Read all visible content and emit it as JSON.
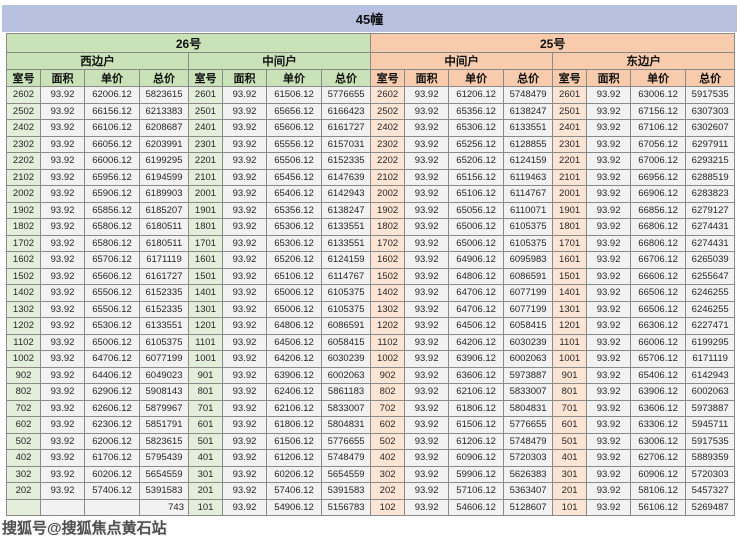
{
  "title": "45幢",
  "table": {
    "groups": [
      {
        "building": "26号",
        "units": [
          "西边户",
          "中间户"
        ]
      },
      {
        "building": "25号",
        "units": [
          "中间户",
          "东边户"
        ]
      }
    ],
    "col_headers": [
      "室号",
      "面积",
      "单价",
      "总价"
    ],
    "rows": [
      [
        "2602",
        "93.92",
        "62006.12",
        "5823615",
        "2601",
        "93.92",
        "61506.12",
        "5776655",
        "2602",
        "93.92",
        "61206.12",
        "5748479",
        "2601",
        "93.92",
        "63006.12",
        "5917535"
      ],
      [
        "2502",
        "93.92",
        "66156.12",
        "6213383",
        "2501",
        "93.92",
        "65656.12",
        "6166423",
        "2502",
        "93.92",
        "65356.12",
        "6138247",
        "2501",
        "93.92",
        "67156.12",
        "6307303"
      ],
      [
        "2402",
        "93.92",
        "66106.12",
        "6208687",
        "2401",
        "93.92",
        "65606.12",
        "6161727",
        "2402",
        "93.92",
        "65306.12",
        "6133551",
        "2401",
        "93.92",
        "67106.12",
        "6302607"
      ],
      [
        "2302",
        "93.92",
        "66056.12",
        "6203991",
        "2301",
        "93.92",
        "65556.12",
        "6157031",
        "2302",
        "93.92",
        "65256.12",
        "6128855",
        "2301",
        "93.92",
        "67056.12",
        "6297911"
      ],
      [
        "2202",
        "93.92",
        "66006.12",
        "6199295",
        "2201",
        "93.92",
        "65506.12",
        "6152335",
        "2202",
        "93.92",
        "65206.12",
        "6124159",
        "2201",
        "93.92",
        "67006.12",
        "6293215"
      ],
      [
        "2102",
        "93.92",
        "65956.12",
        "6194599",
        "2101",
        "93.92",
        "65456.12",
        "6147639",
        "2102",
        "93.92",
        "65156.12",
        "6119463",
        "2101",
        "93.92",
        "66956.12",
        "6288519"
      ],
      [
        "2002",
        "93.92",
        "65906.12",
        "6189903",
        "2001",
        "93.92",
        "65406.12",
        "6142943",
        "2002",
        "93.92",
        "65106.12",
        "6114767",
        "2001",
        "93.92",
        "66906.12",
        "6283823"
      ],
      [
        "1902",
        "93.92",
        "65856.12",
        "6185207",
        "1901",
        "93.92",
        "65356.12",
        "6138247",
        "1902",
        "93.92",
        "65056.12",
        "6110071",
        "1901",
        "93.92",
        "66856.12",
        "6279127"
      ],
      [
        "1802",
        "93.92",
        "65806.12",
        "6180511",
        "1801",
        "93.92",
        "65306.12",
        "6133551",
        "1802",
        "93.92",
        "65006.12",
        "6105375",
        "1801",
        "93.92",
        "66806.12",
        "6274431"
      ],
      [
        "1702",
        "93.92",
        "65806.12",
        "6180511",
        "1701",
        "93.92",
        "65306.12",
        "6133551",
        "1702",
        "93.92",
        "65006.12",
        "6105375",
        "1701",
        "93.92",
        "66806.12",
        "6274431"
      ],
      [
        "1602",
        "93.92",
        "65706.12",
        "6171119",
        "1601",
        "93.92",
        "65206.12",
        "6124159",
        "1602",
        "93.92",
        "64906.12",
        "6095983",
        "1601",
        "93.92",
        "66706.12",
        "6265039"
      ],
      [
        "1502",
        "93.92",
        "65606.12",
        "6161727",
        "1501",
        "93.92",
        "65106.12",
        "6114767",
        "1502",
        "93.92",
        "64806.12",
        "6086591",
        "1501",
        "93.92",
        "66606.12",
        "6255647"
      ],
      [
        "1402",
        "93.92",
        "65506.12",
        "6152335",
        "1401",
        "93.92",
        "65006.12",
        "6105375",
        "1402",
        "93.92",
        "64706.12",
        "6077199",
        "1401",
        "93.92",
        "66506.12",
        "6246255"
      ],
      [
        "1302",
        "93.92",
        "65506.12",
        "6152335",
        "1301",
        "93.92",
        "65006.12",
        "6105375",
        "1302",
        "93.92",
        "64706.12",
        "6077199",
        "1301",
        "93.92",
        "66506.12",
        "6246255"
      ],
      [
        "1202",
        "93.92",
        "65306.12",
        "6133551",
        "1201",
        "93.92",
        "64806.12",
        "6086591",
        "1202",
        "93.92",
        "64506.12",
        "6058415",
        "1201",
        "93.92",
        "66306.12",
        "6227471"
      ],
      [
        "1102",
        "93.92",
        "65006.12",
        "6105375",
        "1101",
        "93.92",
        "64506.12",
        "6058415",
        "1102",
        "93.92",
        "64206.12",
        "6030239",
        "1101",
        "93.92",
        "66006.12",
        "6199295"
      ],
      [
        "1002",
        "93.92",
        "64706.12",
        "6077199",
        "1001",
        "93.92",
        "64206.12",
        "6030239",
        "1002",
        "93.92",
        "63906.12",
        "6002063",
        "1001",
        "93.92",
        "65706.12",
        "6171119"
      ],
      [
        "902",
        "93.92",
        "64406.12",
        "6049023",
        "901",
        "93.92",
        "63906.12",
        "6002063",
        "902",
        "93.92",
        "63606.12",
        "5973887",
        "901",
        "93.92",
        "65406.12",
        "6142943"
      ],
      [
        "802",
        "93.92",
        "62906.12",
        "5908143",
        "801",
        "93.92",
        "62406.12",
        "5861183",
        "802",
        "93.92",
        "62106.12",
        "5833007",
        "801",
        "93.92",
        "63906.12",
        "6002063"
      ],
      [
        "702",
        "93.92",
        "62606.12",
        "5879967",
        "701",
        "93.92",
        "62106.12",
        "5833007",
        "702",
        "93.92",
        "61806.12",
        "5804831",
        "701",
        "93.92",
        "63606.12",
        "5973887"
      ],
      [
        "602",
        "93.92",
        "62306.12",
        "5851791",
        "601",
        "93.92",
        "61806.12",
        "5804831",
        "602",
        "93.92",
        "61506.12",
        "5776655",
        "601",
        "93.92",
        "63306.12",
        "5945711"
      ],
      [
        "502",
        "93.92",
        "62006.12",
        "5823615",
        "501",
        "93.92",
        "61506.12",
        "5776655",
        "502",
        "93.92",
        "61206.12",
        "5748479",
        "501",
        "93.92",
        "63006.12",
        "5917535"
      ],
      [
        "402",
        "93.92",
        "61706.12",
        "5795439",
        "401",
        "93.92",
        "61206.12",
        "5748479",
        "402",
        "93.92",
        "60906.12",
        "5720303",
        "401",
        "93.92",
        "62706.12",
        "5889359"
      ],
      [
        "302",
        "93.92",
        "60206.12",
        "5654559",
        "301",
        "93.92",
        "60206.12",
        "5654559",
        "302",
        "93.92",
        "59906.12",
        "5626383",
        "301",
        "93.92",
        "60906.12",
        "5720303"
      ],
      [
        "202",
        "93.92",
        "57406.12",
        "5391583",
        "201",
        "93.92",
        "57406.12",
        "5391583",
        "202",
        "93.92",
        "57106.12",
        "5363407",
        "201",
        "93.92",
        "58106.12",
        "5457327"
      ],
      [
        "",
        "",
        "",
        "743",
        "101",
        "93.92",
        "54906.12",
        "5156783",
        "102",
        "93.92",
        "54606.12",
        "5128607",
        "101",
        "93.92",
        "56106.12",
        "5269487"
      ]
    ]
  },
  "watermark": {
    "text": "搜狐号@搜狐焦点黄石站",
    "visible_fragment_after": "743"
  },
  "colors": {
    "title_bar": "#b8c1e0",
    "green_header": "#c9e2b8",
    "orange_header": "#f7cbac",
    "green_room_cell": "#e3efda",
    "orange_room_cell": "#fce5d5",
    "data_cell": "#f2f2f2",
    "grid_border": "#8a8a8a"
  }
}
